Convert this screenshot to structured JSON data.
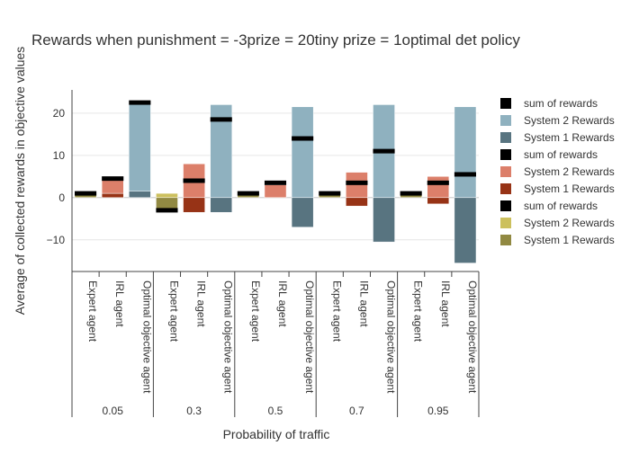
{
  "chart_data": {
    "type": "bar",
    "title": "Rewards when punishment = -3prize = 20tiny prize = 1optimal det policy",
    "xlabel": "Probability of traffic",
    "ylabel": "Average of collected rewards in objective values",
    "ylim": [
      -17.5,
      25.5
    ],
    "yticks": [
      20,
      10,
      0,
      -10
    ],
    "ytick_labels": [
      "20",
      "10",
      "0",
      "−10"
    ],
    "groups": [
      "0.05",
      "0.3",
      "0.5",
      "0.7",
      "0.95"
    ],
    "agents": [
      "Expert agent",
      "IRL agent",
      "Optimal objective agent"
    ],
    "legend_position": "right",
    "legend": [
      {
        "label": "sum of rewards",
        "color": "#000000"
      },
      {
        "label": "System 2 Rewards",
        "color": "#8fb1bf"
      },
      {
        "label": "System 1 Rewards",
        "color": "#587480"
      },
      {
        "label": "sum of rewards",
        "color": "#000000"
      },
      {
        "label": "System 2 Rewards",
        "color": "#dc7f6a"
      },
      {
        "label": "System 1 Rewards",
        "color": "#973316"
      },
      {
        "label": "sum of rewards",
        "color": "#000000"
      },
      {
        "label": "System 2 Rewards",
        "color": "#ccc05e"
      },
      {
        "label": "System 1 Rewards",
        "color": "#918942"
      }
    ],
    "agent_colors": {
      "Expert agent": {
        "system2": "#ccc05e",
        "system1": "#918942"
      },
      "IRL agent": {
        "system2": "#dc7f6a",
        "system1": "#973316"
      },
      "Optimal objective agent": {
        "system2": "#8fb1bf",
        "system1": "#587480"
      }
    },
    "series": [
      {
        "group": "0.05",
        "agent": "Expert agent",
        "system1": 1,
        "system2": 0,
        "sum": 1
      },
      {
        "group": "0.05",
        "agent": "IRL agent",
        "system1": 1,
        "system2": 3.5,
        "sum": 4.5
      },
      {
        "group": "0.05",
        "agent": "Optimal objective agent",
        "system1": 1.5,
        "system2": 21,
        "sum": 22.5
      },
      {
        "group": "0.3",
        "agent": "Expert agent",
        "system1": -3,
        "system2": 1,
        "sum": -3
      },
      {
        "group": "0.3",
        "agent": "IRL agent",
        "system1": -3.5,
        "system2": 8,
        "sum": 4
      },
      {
        "group": "0.3",
        "agent": "Optimal objective agent",
        "system1": -3.5,
        "system2": 22,
        "sum": 18.5
      },
      {
        "group": "0.5",
        "agent": "Expert agent",
        "system1": 1,
        "system2": 0,
        "sum": 1
      },
      {
        "group": "0.5",
        "agent": "IRL agent",
        "system1": 0,
        "system2": 3,
        "sum": 3.5
      },
      {
        "group": "0.5",
        "agent": "Optimal objective agent",
        "system1": -7,
        "system2": 21.5,
        "sum": 14
      },
      {
        "group": "0.7",
        "agent": "Expert agent",
        "system1": 1,
        "system2": 0,
        "sum": 1
      },
      {
        "group": "0.7",
        "agent": "IRL agent",
        "system1": -2,
        "system2": 6,
        "sum": 3.5
      },
      {
        "group": "0.7",
        "agent": "Optimal objective agent",
        "system1": -10.5,
        "system2": 22,
        "sum": 11
      },
      {
        "group": "0.95",
        "agent": "Expert agent",
        "system1": 1,
        "system2": 0,
        "sum": 1
      },
      {
        "group": "0.95",
        "agent": "IRL agent",
        "system1": -1.5,
        "system2": 5,
        "sum": 3.5
      },
      {
        "group": "0.95",
        "agent": "Optimal objective agent",
        "system1": -15.5,
        "system2": 21.5,
        "sum": 5.5
      }
    ]
  }
}
